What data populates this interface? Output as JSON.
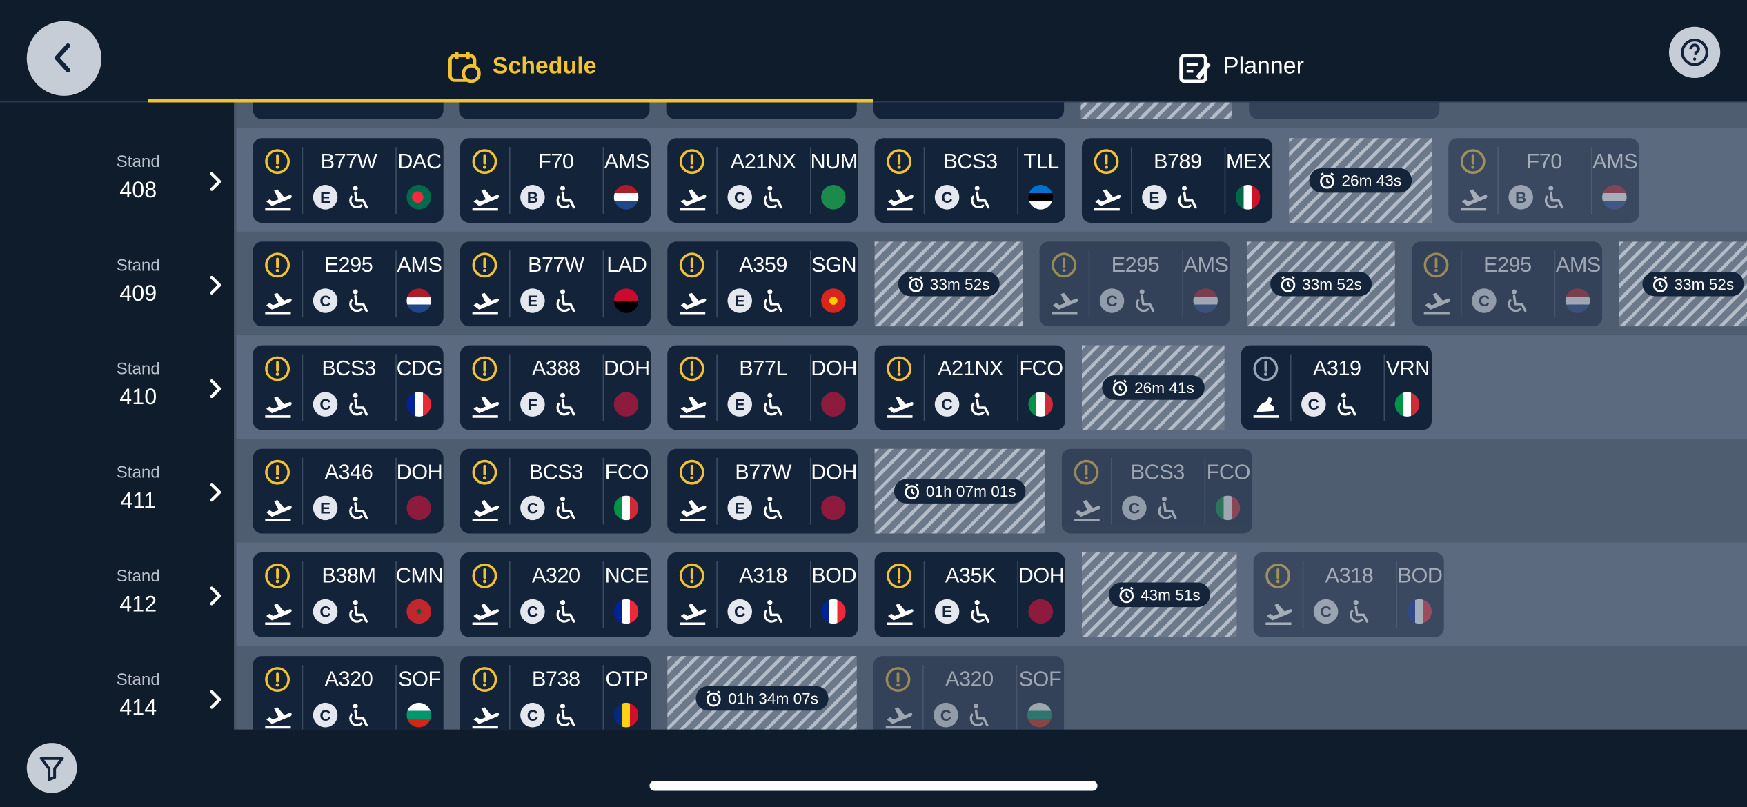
{
  "header": {
    "tabs": [
      "Schedule",
      "Planner"
    ]
  },
  "rows": [
    {
      "label": "Stand",
      "stand": "408",
      "items": [
        {
          "aircraft": "B77W",
          "class": "E",
          "destination": "DAC"
        },
        {
          "aircraft": "F70",
          "class": "B",
          "destination": "AMS"
        },
        {
          "aircraft": "A21NX",
          "class": "C",
          "destination": "NUM"
        },
        {
          "aircraft": "BCS3",
          "class": "C",
          "destination": "TLL"
        },
        {
          "aircraft": "B789",
          "class": "E",
          "destination": "MEX"
        },
        {
          "wait": "26m 43s"
        },
        {
          "aircraft": "F70",
          "class": "B",
          "destination": "AMS"
        }
      ]
    },
    {
      "label": "Stand",
      "stand": "409",
      "items": [
        {
          "aircraft": "E295",
          "class": "C",
          "destination": "AMS"
        },
        {
          "aircraft": "B77W",
          "class": "E",
          "destination": "LAD"
        },
        {
          "aircraft": "A359",
          "class": "E",
          "destination": "SGN"
        },
        {
          "wait": "33m 52s"
        },
        {
          "aircraft": "E295",
          "class": "C",
          "destination": "AMS"
        },
        {
          "wait": "33m 52s"
        },
        {
          "aircraft": "E295",
          "class": "C",
          "destination": "AMS"
        },
        {
          "wait": "33m 52s"
        }
      ]
    },
    {
      "label": "Stand",
      "stand": "410",
      "items": [
        {
          "aircraft": "BCS3",
          "class": "C",
          "destination": "CDG"
        },
        {
          "aircraft": "A388",
          "class": "F",
          "destination": "DOH"
        },
        {
          "aircraft": "B77L",
          "class": "E",
          "destination": "DOH"
        },
        {
          "aircraft": "A21NX",
          "class": "C",
          "destination": "FCO"
        },
        {
          "wait": "26m 41s"
        },
        {
          "aircraft": "A319",
          "class": "C",
          "destination": "VRN"
        }
      ]
    },
    {
      "label": "Stand",
      "stand": "411",
      "items": [
        {
          "aircraft": "A346",
          "class": "E",
          "destination": "DOH"
        },
        {
          "aircraft": "BCS3",
          "class": "C",
          "destination": "FCO"
        },
        {
          "aircraft": "B77W",
          "class": "E",
          "destination": "DOH"
        },
        {
          "wait": "01h 07m 01s"
        },
        {
          "aircraft": "BCS3",
          "class": "C",
          "destination": "FCO"
        }
      ]
    },
    {
      "label": "Stand",
      "stand": "412",
      "items": [
        {
          "aircraft": "B38M",
          "class": "C",
          "destination": "CMN"
        },
        {
          "aircraft": "A320",
          "class": "C",
          "destination": "NCE"
        },
        {
          "aircraft": "A318",
          "class": "C",
          "destination": "BOD"
        },
        {
          "aircraft": "A35K",
          "class": "E",
          "destination": "DOH"
        },
        {
          "wait": "43m 51s"
        },
        {
          "aircraft": "A318",
          "class": "C",
          "destination": "BOD"
        }
      ]
    },
    {
      "label": "Stand",
      "stand": "414",
      "items": [
        {
          "aircraft": "A320",
          "class": "C",
          "destination": "SOF"
        },
        {
          "aircraft": "B738",
          "class": "C",
          "destination": "OTP"
        },
        {
          "wait": "01h 34m 07s"
        },
        {
          "aircraft": "A320",
          "class": "C",
          "destination": "SOF"
        }
      ]
    }
  ]
}
